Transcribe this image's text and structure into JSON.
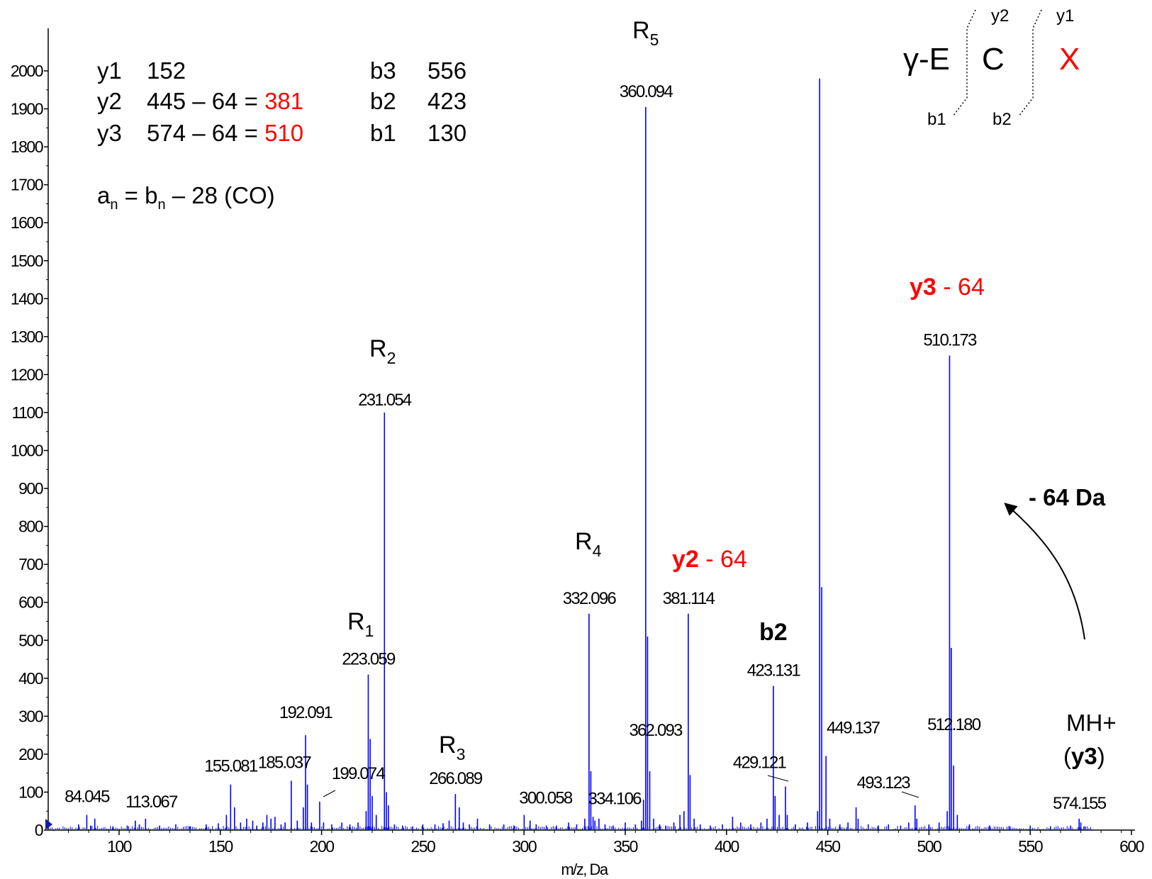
{
  "chart_data": {
    "type": "bar",
    "xlabel": "m/z, Da",
    "ylabel": "",
    "xlim": [
      62,
      600
    ],
    "ylim": [
      0,
      2050
    ],
    "xticks": [
      "100",
      "150",
      "200",
      "250",
      "300",
      "350",
      "400",
      "450",
      "500",
      "550",
      "600"
    ],
    "yticks": [
      "0",
      "100",
      "200",
      "300",
      "400",
      "500",
      "600",
      "700",
      "800",
      "900",
      "1000",
      "1100",
      "1200",
      "1300",
      "1400",
      "1500",
      "1600",
      "1700",
      "1800",
      "1900",
      "2000"
    ],
    "colors": {
      "peaks": "#0000ff",
      "highlight": "#ff0000"
    },
    "peaks": [
      {
        "x": 80.0,
        "y": 15
      },
      {
        "x": 84.045,
        "y": 40
      },
      {
        "x": 86.0,
        "y": 12
      },
      {
        "x": 88.0,
        "y": 30
      },
      {
        "x": 97.0,
        "y": 10
      },
      {
        "x": 104.0,
        "y": 12
      },
      {
        "x": 108.0,
        "y": 25
      },
      {
        "x": 110.0,
        "y": 15
      },
      {
        "x": 113.067,
        "y": 30
      },
      {
        "x": 120.0,
        "y": 12
      },
      {
        "x": 128.0,
        "y": 15
      },
      {
        "x": 135.0,
        "y": 10
      },
      {
        "x": 143.0,
        "y": 15
      },
      {
        "x": 149.0,
        "y": 18
      },
      {
        "x": 153.0,
        "y": 40
      },
      {
        "x": 155.081,
        "y": 120
      },
      {
        "x": 157.0,
        "y": 60
      },
      {
        "x": 160.0,
        "y": 20
      },
      {
        "x": 163.0,
        "y": 30
      },
      {
        "x": 166.0,
        "y": 25
      },
      {
        "x": 168.0,
        "y": 12
      },
      {
        "x": 171.0,
        "y": 20
      },
      {
        "x": 173.0,
        "y": 40
      },
      {
        "x": 175.0,
        "y": 30
      },
      {
        "x": 177.0,
        "y": 35
      },
      {
        "x": 180.0,
        "y": 15
      },
      {
        "x": 182.0,
        "y": 20
      },
      {
        "x": 185.037,
        "y": 130
      },
      {
        "x": 188.0,
        "y": 25
      },
      {
        "x": 191.0,
        "y": 60
      },
      {
        "x": 192.091,
        "y": 250
      },
      {
        "x": 193.0,
        "y": 120
      },
      {
        "x": 195.0,
        "y": 20
      },
      {
        "x": 199.074,
        "y": 75
      },
      {
        "x": 201.0,
        "y": 20
      },
      {
        "x": 205.0,
        "y": 15
      },
      {
        "x": 210.0,
        "y": 20
      },
      {
        "x": 214.0,
        "y": 15
      },
      {
        "x": 218.0,
        "y": 20
      },
      {
        "x": 222.0,
        "y": 50
      },
      {
        "x": 223.059,
        "y": 410
      },
      {
        "x": 224.0,
        "y": 240
      },
      {
        "x": 225.0,
        "y": 90
      },
      {
        "x": 227.0,
        "y": 40
      },
      {
        "x": 231.054,
        "y": 1100
      },
      {
        "x": 232.0,
        "y": 100
      },
      {
        "x": 233.0,
        "y": 65
      },
      {
        "x": 236.0,
        "y": 15
      },
      {
        "x": 240.0,
        "y": 12
      },
      {
        "x": 245.0,
        "y": 10
      },
      {
        "x": 250.0,
        "y": 15
      },
      {
        "x": 256.0,
        "y": 15
      },
      {
        "x": 260.0,
        "y": 18
      },
      {
        "x": 263.0,
        "y": 25
      },
      {
        "x": 266.089,
        "y": 95
      },
      {
        "x": 268.0,
        "y": 60
      },
      {
        "x": 270.0,
        "y": 20
      },
      {
        "x": 273.0,
        "y": 15
      },
      {
        "x": 277.0,
        "y": 30
      },
      {
        "x": 283.0,
        "y": 15
      },
      {
        "x": 290.0,
        "y": 15
      },
      {
        "x": 295.0,
        "y": 12
      },
      {
        "x": 300.058,
        "y": 40
      },
      {
        "x": 303.0,
        "y": 25
      },
      {
        "x": 306.0,
        "y": 15
      },
      {
        "x": 311.0,
        "y": 12
      },
      {
        "x": 316.0,
        "y": 12
      },
      {
        "x": 322.0,
        "y": 20
      },
      {
        "x": 326.0,
        "y": 15
      },
      {
        "x": 330.0,
        "y": 30
      },
      {
        "x": 332.096,
        "y": 570
      },
      {
        "x": 333.0,
        "y": 155
      },
      {
        "x": 334.106,
        "y": 35
      },
      {
        "x": 335.0,
        "y": 25
      },
      {
        "x": 337.0,
        "y": 30
      },
      {
        "x": 340.0,
        "y": 15
      },
      {
        "x": 344.0,
        "y": 12
      },
      {
        "x": 350.0,
        "y": 20
      },
      {
        "x": 355.0,
        "y": 15
      },
      {
        "x": 358.0,
        "y": 25
      },
      {
        "x": 359.0,
        "y": 80
      },
      {
        "x": 360.094,
        "y": 1905
      },
      {
        "x": 361.0,
        "y": 510
      },
      {
        "x": 362.093,
        "y": 155
      },
      {
        "x": 364.0,
        "y": 30
      },
      {
        "x": 367.0,
        "y": 15
      },
      {
        "x": 370.0,
        "y": 12
      },
      {
        "x": 374.0,
        "y": 20
      },
      {
        "x": 377.0,
        "y": 40
      },
      {
        "x": 379.0,
        "y": 50
      },
      {
        "x": 381.114,
        "y": 570
      },
      {
        "x": 382.0,
        "y": 145
      },
      {
        "x": 384.0,
        "y": 30
      },
      {
        "x": 387.0,
        "y": 15
      },
      {
        "x": 392.0,
        "y": 12
      },
      {
        "x": 398.0,
        "y": 15
      },
      {
        "x": 403.0,
        "y": 35
      },
      {
        "x": 407.0,
        "y": 20
      },
      {
        "x": 412.0,
        "y": 15
      },
      {
        "x": 417.0,
        "y": 20
      },
      {
        "x": 420.0,
        "y": 30
      },
      {
        "x": 423.131,
        "y": 380
      },
      {
        "x": 424.0,
        "y": 90
      },
      {
        "x": 426.0,
        "y": 40
      },
      {
        "x": 429.121,
        "y": 115
      },
      {
        "x": 430.0,
        "y": 40
      },
      {
        "x": 434.0,
        "y": 15
      },
      {
        "x": 440.0,
        "y": 20
      },
      {
        "x": 445.0,
        "y": 50
      },
      {
        "x": 446.0,
        "y": 1980
      },
      {
        "x": 447.0,
        "y": 640
      },
      {
        "x": 449.137,
        "y": 195
      },
      {
        "x": 451.0,
        "y": 30
      },
      {
        "x": 456.0,
        "y": 15
      },
      {
        "x": 460.0,
        "y": 20
      },
      {
        "x": 464.0,
        "y": 60
      },
      {
        "x": 465.0,
        "y": 30
      },
      {
        "x": 470.0,
        "y": 15
      },
      {
        "x": 475.0,
        "y": 12
      },
      {
        "x": 480.0,
        "y": 15
      },
      {
        "x": 486.0,
        "y": 12
      },
      {
        "x": 490.0,
        "y": 20
      },
      {
        "x": 493.123,
        "y": 65
      },
      {
        "x": 494.0,
        "y": 30
      },
      {
        "x": 500.0,
        "y": 15
      },
      {
        "x": 505.0,
        "y": 20
      },
      {
        "x": 509.0,
        "y": 50
      },
      {
        "x": 510.173,
        "y": 1250
      },
      {
        "x": 511.0,
        "y": 480
      },
      {
        "x": 512.18,
        "y": 170
      },
      {
        "x": 514.0,
        "y": 40
      },
      {
        "x": 520.0,
        "y": 15
      },
      {
        "x": 530.0,
        "y": 12
      },
      {
        "x": 540.0,
        "y": 10
      },
      {
        "x": 550.0,
        "y": 12
      },
      {
        "x": 560.0,
        "y": 10
      },
      {
        "x": 570.0,
        "y": 12
      },
      {
        "x": 574.155,
        "y": 30
      },
      {
        "x": 575.0,
        "y": 20
      },
      {
        "x": 577.0,
        "y": 10
      }
    ],
    "peak_labels": [
      {
        "text": "84.045",
        "x": 84.045,
        "y": 40
      },
      {
        "text": "113.067",
        "x": 113.067,
        "y": 30
      },
      {
        "text": "155.081",
        "x": 155.081,
        "y": 120
      },
      {
        "text": "185.037",
        "x": 185.037,
        "y": 130
      },
      {
        "text": "192.091",
        "x": 192.091,
        "y": 250
      },
      {
        "text": "199.074",
        "x": 199.074,
        "y": 75
      },
      {
        "text": "223.059",
        "x": 223.059,
        "y": 410
      },
      {
        "text": "231.054",
        "x": 231.054,
        "y": 1100
      },
      {
        "text": "266.089",
        "x": 266.089,
        "y": 95
      },
      {
        "text": "300.058",
        "x": 300.058,
        "y": 40
      },
      {
        "text": "332.096",
        "x": 332.096,
        "y": 570
      },
      {
        "text": "334.106",
        "x": 334.106,
        "y": 35
      },
      {
        "text": "360.094",
        "x": 360.094,
        "y": 1905
      },
      {
        "text": "362.093",
        "x": 362.093,
        "y": 155
      },
      {
        "text": "381.114",
        "x": 381.114,
        "y": 570
      },
      {
        "text": "423.131",
        "x": 423.131,
        "y": 380
      },
      {
        "text": "429.121",
        "x": 429.121,
        "y": 115
      },
      {
        "text": "449.137",
        "x": 449.137,
        "y": 195
      },
      {
        "text": "493.123",
        "x": 493.123,
        "y": 65
      },
      {
        "text": "510.173",
        "x": 510.173,
        "y": 1250
      },
      {
        "text": "512.180",
        "x": 512.18,
        "y": 170
      },
      {
        "text": "574.155",
        "x": 574.155,
        "y": 30
      }
    ],
    "ion_labels": [
      {
        "main": "R",
        "sub": "1"
      },
      {
        "main": "R",
        "sub": "2"
      },
      {
        "main": "R",
        "sub": "3"
      },
      {
        "main": "R",
        "sub": "4"
      },
      {
        "main": "R",
        "sub": "5"
      }
    ],
    "fragment_table": [
      {
        "ion": "y1",
        "calc": "152",
        "result": ""
      },
      {
        "ion": "y2",
        "calc": "445 – 64 = ",
        "result": "381"
      },
      {
        "ion": "y3",
        "calc": "574 – 64 = ",
        "result": "510"
      },
      {
        "ion": "b3",
        "calc": "556",
        "result": ""
      },
      {
        "ion": "b2",
        "calc": "423",
        "result": ""
      },
      {
        "ion": "b1",
        "calc": "130",
        "result": ""
      }
    ],
    "formula": {
      "a": "a",
      "a_sub": "n",
      "eq": " = ",
      "b": "b",
      "b_sub": "n",
      "rest": " – 28 (CO)"
    },
    "sequence": {
      "res1": "γ-E",
      "res2": "C",
      "res3": "X",
      "y2": "y2",
      "y1": "y1",
      "b1": "b1",
      "b2": "b2"
    },
    "annotations": {
      "y3_label": "y3",
      "y3_rest": " - 64",
      "y2_label": "y2",
      "y2_rest": " - 64",
      "b2_label": "b2",
      "mh_line1": "MH+",
      "mh_open": "(",
      "mh_bold": "y3",
      "mh_close": ")",
      "loss": "- 64 Da"
    }
  }
}
